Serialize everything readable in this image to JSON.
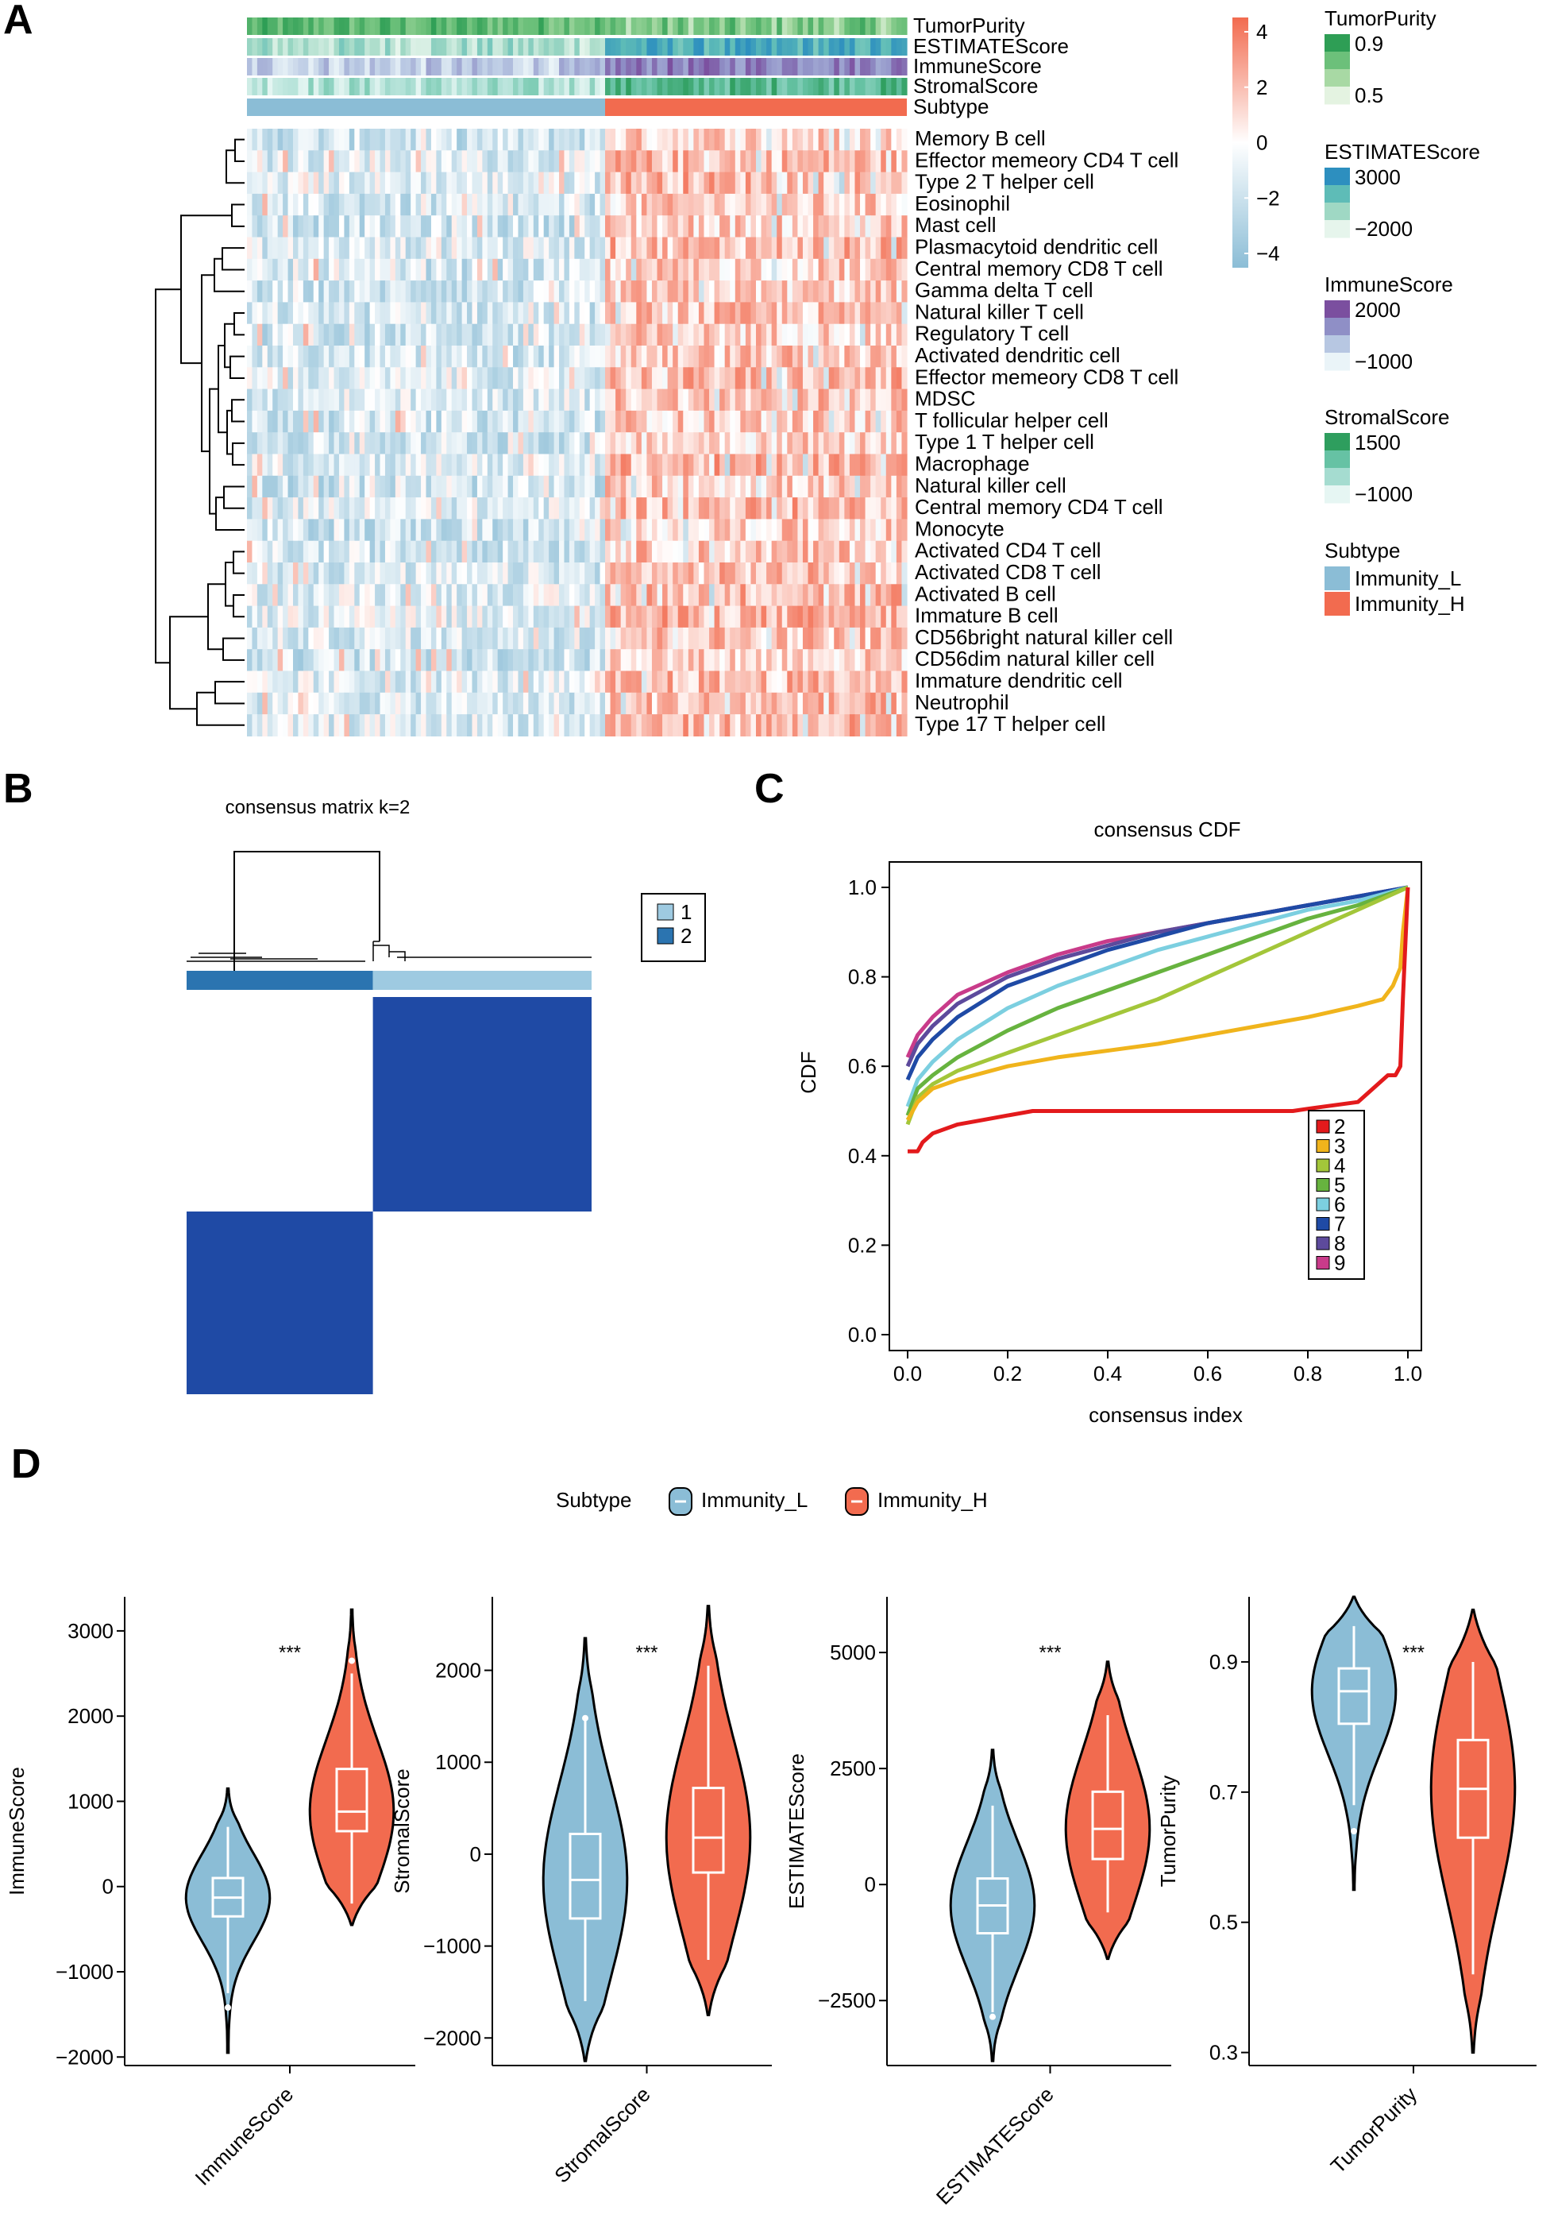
{
  "panel_letters": [
    "A",
    "B",
    "C",
    "D"
  ],
  "chart_data": [
    {
      "type": "heatmap",
      "panel": "A",
      "rows": [
        "Memory B cell",
        "Effector memeory CD4 T cell",
        "Type 2 T helper cell",
        "Eosinophil",
        "Mast cell",
        "Plasmacytoid dendritic cell",
        "Central memory CD8 T cell",
        "Gamma delta T cell",
        "Natural killer T cell",
        "Regulatory T cell",
        "Activated dendritic cell",
        "Effector memeory CD8 T cell",
        "MDSC",
        "T follicular helper cell",
        "Type 1 T helper cell",
        "Macrophage",
        "Natural killer cell",
        "Central memory CD4 T cell",
        "Monocyte",
        "Activated CD4 T cell",
        "Activated CD8 T cell",
        "Activated B cell",
        "Immature  B cell",
        "CD56bright natural killer cell",
        "CD56dim natural killer cell",
        "Immature dendritic cell",
        "Neutrophil",
        "Type 17 T helper cell"
      ],
      "annotation_tracks": [
        "TumorPurity",
        "ESTIMATEScore",
        "ImmuneScore",
        "StromalScore",
        "Subtype"
      ],
      "groups": [
        {
          "name": "Immunity_L",
          "n_columns": 70
        },
        {
          "name": "Immunity_H",
          "n_columns": 58
        }
      ],
      "color_scale": {
        "min": -4,
        "max": 4,
        "ticks": [
          "4",
          "2",
          "0",
          "−2",
          "−4"
        ],
        "low": "#8bbdd6",
        "mid": "#ffffff",
        "high": "#f26b4f"
      },
      "legends": [
        {
          "title": "TumorPurity",
          "labels": [
            "0.9",
            "0.5"
          ],
          "colors": [
            "#2e9e55",
            "#6cc07a",
            "#a8d9a4",
            "#e4f3e1"
          ]
        },
        {
          "title": "ESTIMATEScore",
          "labels": [
            "3000",
            "−2000"
          ],
          "colors": [
            "#2d8fbf",
            "#5ebcb7",
            "#9fd8c4",
            "#e6f5ec"
          ]
        },
        {
          "title": "ImmuneScore",
          "labels": [
            "2000",
            "−1000"
          ],
          "colors": [
            "#7b4f9f",
            "#8f8fc6",
            "#b7c7e2",
            "#eaf4f8"
          ]
        },
        {
          "title": "StromalScore",
          "labels": [
            "1500",
            "−1000"
          ],
          "colors": [
            "#2e9e5e",
            "#66c2a4",
            "#a5dcd0",
            "#e6f6f3"
          ]
        },
        {
          "title": "Subtype",
          "labels": [
            "Immunity_L",
            "Immunity_H"
          ],
          "colors": [
            "#8bbdd6",
            "#f26b4f"
          ]
        }
      ]
    },
    {
      "type": "heatmap",
      "panel": "B",
      "title": "consensus matrix k=2",
      "clusters": [
        {
          "label": "1",
          "color": "#9ecae1",
          "fraction": 0.54
        },
        {
          "label": "2",
          "color": "#2b74b0",
          "fraction": 0.46
        }
      ],
      "fill_color": "#1f4aa5"
    },
    {
      "type": "line",
      "panel": "C",
      "title": "consensus CDF",
      "xlabel": "consensus index",
      "ylabel": "CDF",
      "xlim": [
        0,
        1
      ],
      "ylim": [
        0,
        1
      ],
      "xticks": [
        "0.0",
        "0.2",
        "0.4",
        "0.6",
        "0.8",
        "1.0"
      ],
      "yticks": [
        "0.0",
        "0.2",
        "0.4",
        "0.6",
        "0.8",
        "1.0"
      ],
      "series": [
        {
          "name": "2",
          "color": "#e31a1c",
          "x": [
            0,
            0.02,
            0.03,
            0.05,
            0.1,
            0.15,
            0.2,
            0.25,
            0.3,
            0.5,
            0.7,
            0.77,
            0.8,
            0.9,
            0.95,
            0.96,
            0.975,
            0.985,
            0.99,
            1.0
          ],
          "y": [
            0.41,
            0.41,
            0.43,
            0.45,
            0.47,
            0.48,
            0.49,
            0.5,
            0.5,
            0.5,
            0.5,
            0.5,
            0.505,
            0.52,
            0.57,
            0.58,
            0.58,
            0.6,
            0.75,
            1.0
          ]
        },
        {
          "name": "3",
          "color": "#f0b41c",
          "x": [
            0,
            0.02,
            0.05,
            0.1,
            0.2,
            0.3,
            0.4,
            0.5,
            0.6,
            0.7,
            0.8,
            0.9,
            0.95,
            0.97,
            0.985,
            0.99,
            1.0
          ],
          "y": [
            0.48,
            0.52,
            0.55,
            0.57,
            0.6,
            0.62,
            0.635,
            0.65,
            0.67,
            0.69,
            0.71,
            0.735,
            0.75,
            0.78,
            0.82,
            0.9,
            1.0
          ]
        },
        {
          "name": "4",
          "color": "#a3c63a",
          "x": [
            0,
            0.02,
            0.05,
            0.1,
            0.2,
            0.3,
            0.4,
            0.5,
            0.6,
            0.7,
            0.8,
            0.9,
            1.0
          ],
          "y": [
            0.47,
            0.53,
            0.56,
            0.59,
            0.63,
            0.67,
            0.71,
            0.75,
            0.8,
            0.85,
            0.9,
            0.95,
            1.0
          ]
        },
        {
          "name": "5",
          "color": "#67b33f",
          "x": [
            0,
            0.02,
            0.05,
            0.1,
            0.2,
            0.3,
            0.4,
            0.5,
            0.6,
            0.7,
            0.8,
            0.9,
            1.0
          ],
          "y": [
            0.49,
            0.55,
            0.58,
            0.62,
            0.68,
            0.73,
            0.77,
            0.81,
            0.85,
            0.89,
            0.93,
            0.96,
            1.0
          ]
        },
        {
          "name": "6",
          "color": "#7ccfe0",
          "x": [
            0,
            0.02,
            0.05,
            0.1,
            0.2,
            0.3,
            0.4,
            0.5,
            0.6,
            0.7,
            0.8,
            0.9,
            1.0
          ],
          "y": [
            0.51,
            0.57,
            0.61,
            0.66,
            0.73,
            0.78,
            0.82,
            0.86,
            0.89,
            0.92,
            0.95,
            0.97,
            1.0
          ]
        },
        {
          "name": "7",
          "color": "#1f4aa5",
          "x": [
            0,
            0.02,
            0.05,
            0.1,
            0.2,
            0.3,
            0.4,
            0.5,
            0.6,
            0.7,
            0.8,
            0.9,
            1.0
          ],
          "y": [
            0.57,
            0.62,
            0.66,
            0.71,
            0.78,
            0.82,
            0.86,
            0.89,
            0.92,
            0.94,
            0.96,
            0.98,
            1.0
          ]
        },
        {
          "name": "8",
          "color": "#5d4a9c",
          "x": [
            0,
            0.02,
            0.05,
            0.1,
            0.2,
            0.3,
            0.4,
            0.5,
            0.6,
            0.7,
            0.8,
            0.9,
            1.0
          ],
          "y": [
            0.6,
            0.65,
            0.69,
            0.74,
            0.8,
            0.84,
            0.87,
            0.9,
            0.92,
            0.94,
            0.96,
            0.98,
            1.0
          ]
        },
        {
          "name": "9",
          "color": "#c93b8a",
          "x": [
            0,
            0.02,
            0.05,
            0.1,
            0.2,
            0.3,
            0.4,
            0.5,
            0.6,
            0.7,
            0.8,
            0.9,
            1.0
          ],
          "y": [
            0.62,
            0.67,
            0.71,
            0.76,
            0.81,
            0.85,
            0.88,
            0.9,
            0.92,
            0.94,
            0.96,
            0.98,
            1.0
          ]
        }
      ]
    },
    {
      "type": "violin",
      "panel": "D",
      "legend_title": "Subtype",
      "legend": [
        {
          "name": "Immunity_L",
          "color": "#8bbdd6"
        },
        {
          "name": "Immunity_H",
          "color": "#f26b4f"
        }
      ],
      "plots": [
        {
          "name": "ImmuneScore",
          "ylabel": "ImmuneScore",
          "ylim": [
            -2100,
            3400
          ],
          "yticks": [
            3000,
            2000,
            1000,
            0,
            -1000,
            -2000
          ],
          "ytick_labels": [
            "3000",
            "2000",
            "1000",
            "0",
            "−1000",
            "−2000"
          ],
          "significance": "***",
          "groups": [
            {
              "name": "Immunity_L",
              "min": -1950,
              "q1": -350,
              "median": -130,
              "q3": 100,
              "max": 1150,
              "whisker_lo": -1250,
              "whisker_hi": 700,
              "outliers": [
                -1420
              ]
            },
            {
              "name": "Immunity_H",
              "min": -450,
              "q1": 650,
              "median": 880,
              "q3": 1380,
              "max": 3250,
              "whisker_lo": -200,
              "whisker_hi": 2500,
              "outliers": [
                2650
              ]
            }
          ]
        },
        {
          "name": "StromalScore",
          "ylabel": "StromalScore",
          "ylim": [
            -2300,
            2800
          ],
          "yticks": [
            2000,
            1000,
            0,
            -1000,
            -2000
          ],
          "ytick_labels": [
            "2000",
            "1000",
            "0",
            "−1000",
            "−2000"
          ],
          "significance": "***",
          "groups": [
            {
              "name": "Immunity_L",
              "min": -2250,
              "q1": -700,
              "median": -280,
              "q3": 220,
              "max": 2350,
              "whisker_lo": -1600,
              "whisker_hi": 1450,
              "outliers": [
                1480
              ]
            },
            {
              "name": "Immunity_H",
              "min": -1750,
              "q1": -200,
              "median": 180,
              "q3": 720,
              "max": 2700,
              "whisker_lo": -1150,
              "whisker_hi": 2050,
              "outliers": []
            }
          ]
        },
        {
          "name": "ESTIMATEScore",
          "ylabel": "ESTIMATEScore",
          "ylim": [
            -3900,
            6200
          ],
          "yticks": [
            5000,
            2500,
            0,
            -2500
          ],
          "ytick_labels": [
            "5000",
            "2500",
            "0",
            "−2500"
          ],
          "significance": "***",
          "groups": [
            {
              "name": "Immunity_L",
              "min": -3800,
              "q1": -1050,
              "median": -450,
              "q3": 130,
              "max": 2900,
              "whisker_lo": -2750,
              "whisker_hi": 1700,
              "outliers": [
                -2850
              ]
            },
            {
              "name": "Immunity_H",
              "min": -1600,
              "q1": 550,
              "median": 1200,
              "q3": 2000,
              "max": 4800,
              "whisker_lo": -600,
              "whisker_hi": 3650,
              "outliers": []
            }
          ]
        },
        {
          "name": "TumorPurity",
          "ylabel": "TumorPurity",
          "ylim": [
            0.28,
            1.0
          ],
          "yticks": [
            0.9,
            0.7,
            0.5,
            0.3
          ],
          "ytick_labels": [
            "0.9",
            "0.7",
            "0.5",
            "0.3"
          ],
          "significance": "***",
          "groups": [
            {
              "name": "Immunity_L",
              "min": 0.55,
              "q1": 0.805,
              "median": 0.855,
              "q3": 0.89,
              "max": 1.0,
              "whisker_lo": 0.68,
              "whisker_hi": 0.955,
              "outliers": [
                0.64
              ]
            },
            {
              "name": "Immunity_H",
              "min": 0.3,
              "q1": 0.63,
              "median": 0.705,
              "q3": 0.78,
              "max": 0.98,
              "whisker_lo": 0.42,
              "whisker_hi": 0.9,
              "outliers": []
            }
          ]
        }
      ]
    }
  ]
}
